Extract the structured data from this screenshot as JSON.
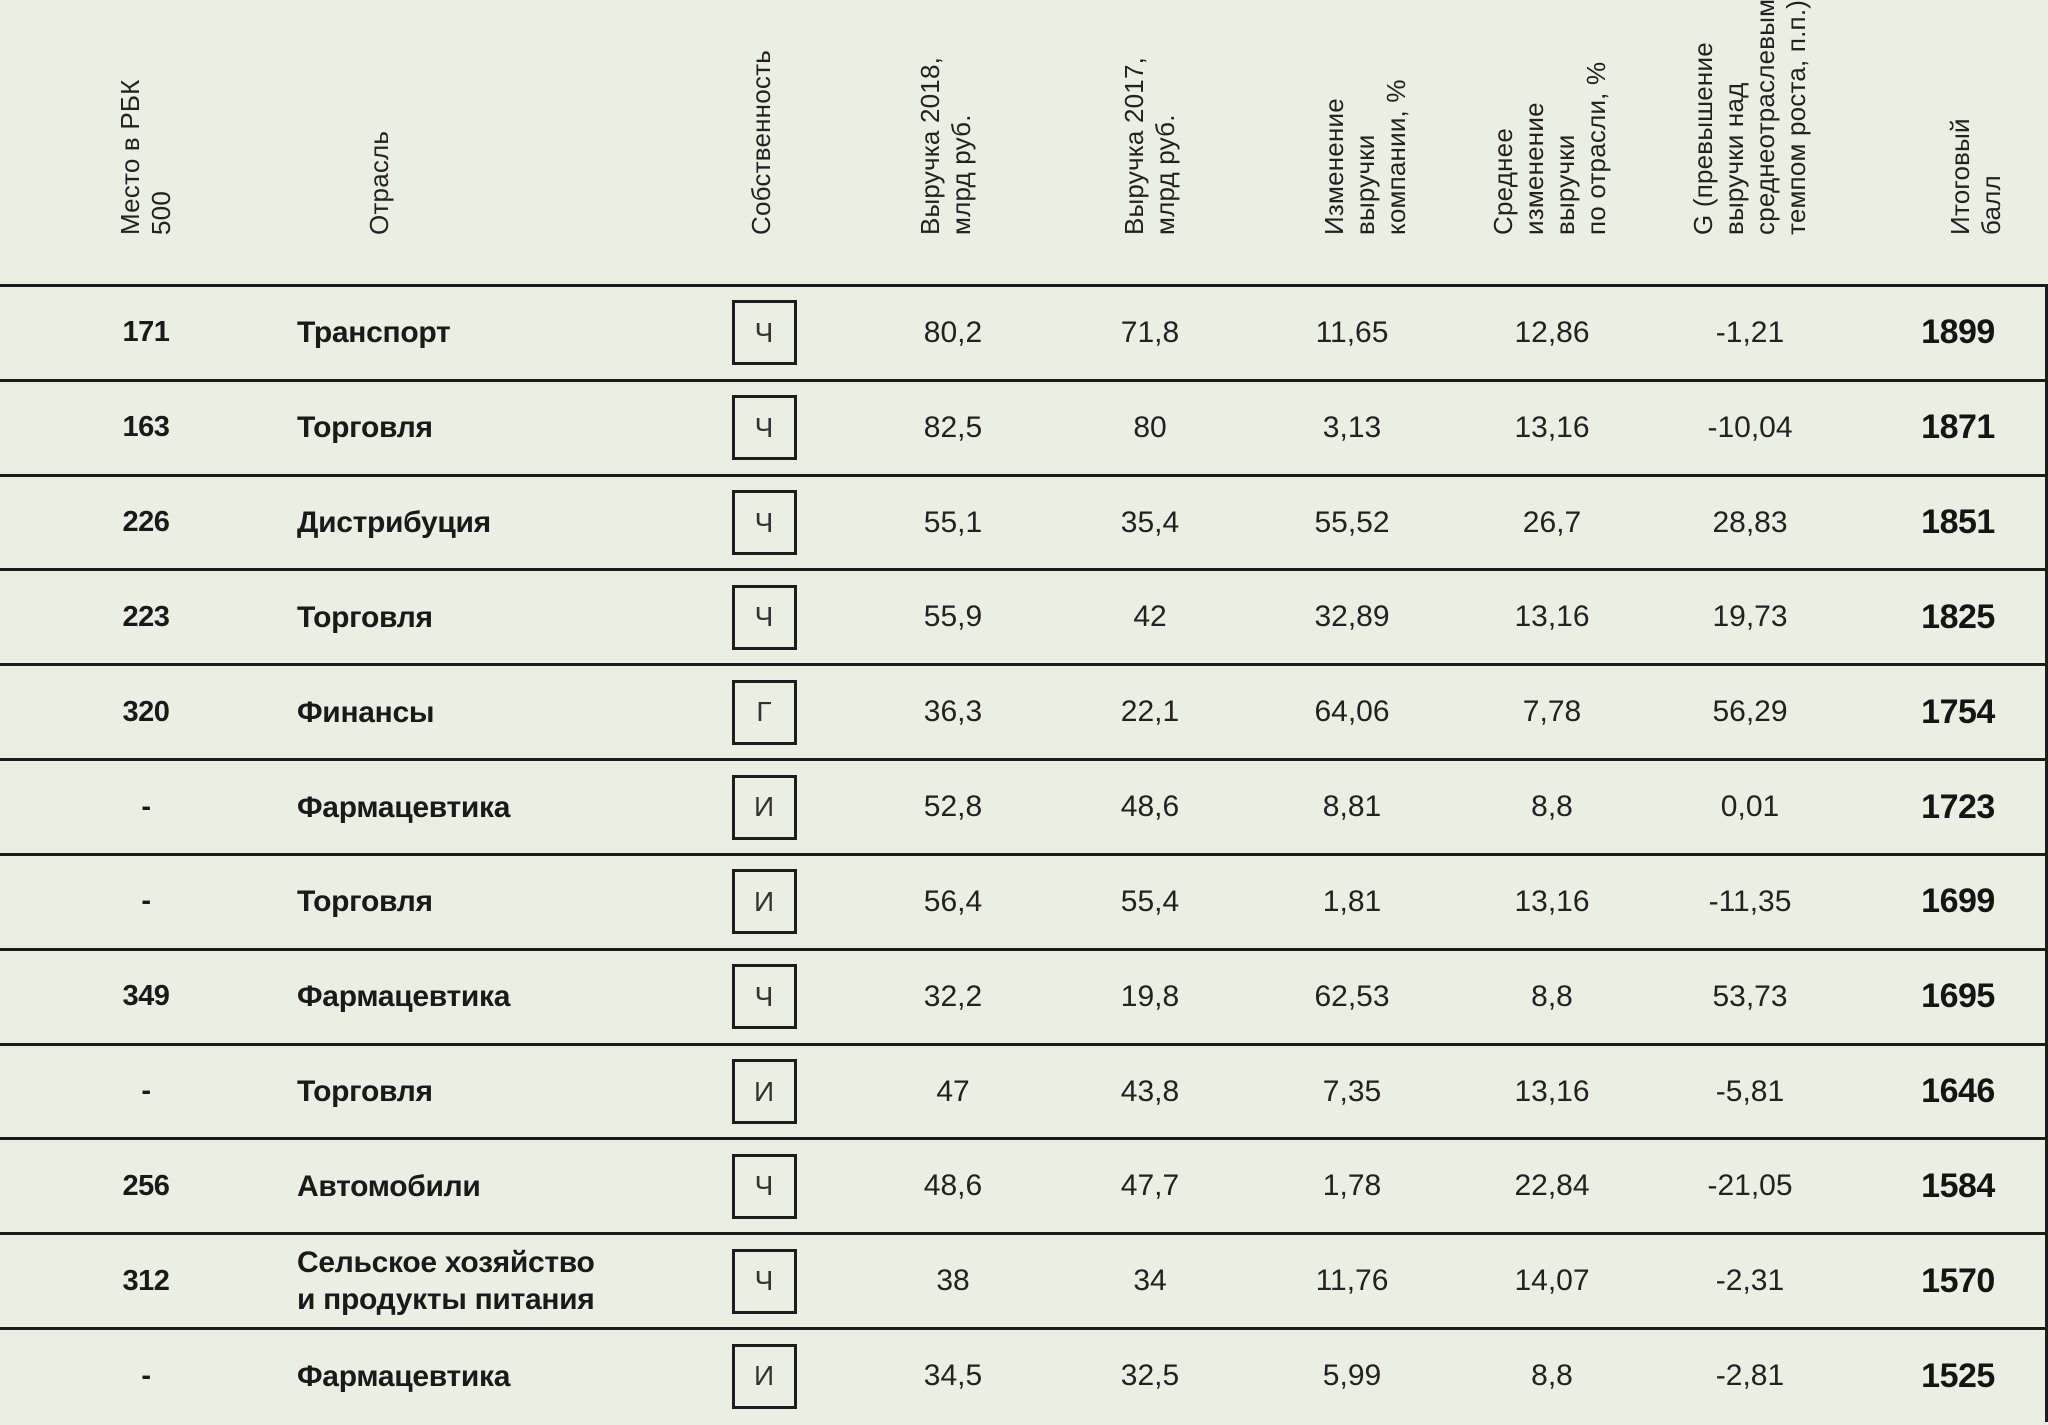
{
  "page": {
    "background_color": "#e9efe3",
    "separator_color": "#1b1b19",
    "text_color": "#1d1d1b"
  },
  "chart_data": {
    "type": "table",
    "title": "",
    "columns": [
      {
        "id": "rank",
        "label": "Место в РБК\n500"
      },
      {
        "id": "industry",
        "label": "Отрасль"
      },
      {
        "id": "ownership",
        "label": "Собственность"
      },
      {
        "id": "revenue_2018",
        "label": "Выручка 2018,\nмлрд руб."
      },
      {
        "id": "revenue_2017",
        "label": "Выручка 2017,\nмлрд руб."
      },
      {
        "id": "company_change_pct",
        "label": "Изменение\nвыручки\nкомпании, %"
      },
      {
        "id": "industry_avg_change",
        "label": "Среднее\nизменение\nвыручки\nпо отрасли, %"
      },
      {
        "id": "g_excess_growth",
        "label": "G (превышение\nвыручки над\nсреднеотраслевым\nтемпом роста, п.п.)"
      },
      {
        "id": "total_score",
        "label": "Итоговый балл"
      }
    ],
    "rows": [
      [
        "171",
        "Транспорт",
        "Ч",
        "80,2",
        "71,8",
        "11,65",
        "12,86",
        "-1,21",
        "1899"
      ],
      [
        "163",
        "Торговля",
        "Ч",
        "82,5",
        "80",
        "3,13",
        "13,16",
        "-10,04",
        "1871"
      ],
      [
        "226",
        "Дистрибуция",
        "Ч",
        "55,1",
        "35,4",
        "55,52",
        "26,7",
        "28,83",
        "1851"
      ],
      [
        "223",
        "Торговля",
        "Ч",
        "55,9",
        "42",
        "32,89",
        "13,16",
        "19,73",
        "1825"
      ],
      [
        "320",
        "Финансы",
        "Г",
        "36,3",
        "22,1",
        "64,06",
        "7,78",
        "56,29",
        "1754"
      ],
      [
        "-",
        "Фармацевтика",
        "И",
        "52,8",
        "48,6",
        "8,81",
        "8,8",
        "0,01",
        "1723"
      ],
      [
        "-",
        "Торговля",
        "И",
        "56,4",
        "55,4",
        "1,81",
        "13,16",
        "-11,35",
        "1699"
      ],
      [
        "349",
        "Фармацевтика",
        "Ч",
        "32,2",
        "19,8",
        "62,53",
        "8,8",
        "53,73",
        "1695"
      ],
      [
        "-",
        "Торговля",
        "И",
        "47",
        "43,8",
        "7,35",
        "13,16",
        "-5,81",
        "1646"
      ],
      [
        "256",
        "Автомобили",
        "Ч",
        "48,6",
        "47,7",
        "1,78",
        "22,84",
        "-21,05",
        "1584"
      ],
      [
        "312",
        "Сельское хозяйство\nи продукты питания",
        "Ч",
        "38",
        "34",
        "11,76",
        "14,07",
        "-2,31",
        "1570"
      ],
      [
        "-",
        "Фармацевтика",
        "И",
        "34,5",
        "32,5",
        "5,99",
        "8,8",
        "-2,81",
        "1525"
      ]
    ]
  }
}
